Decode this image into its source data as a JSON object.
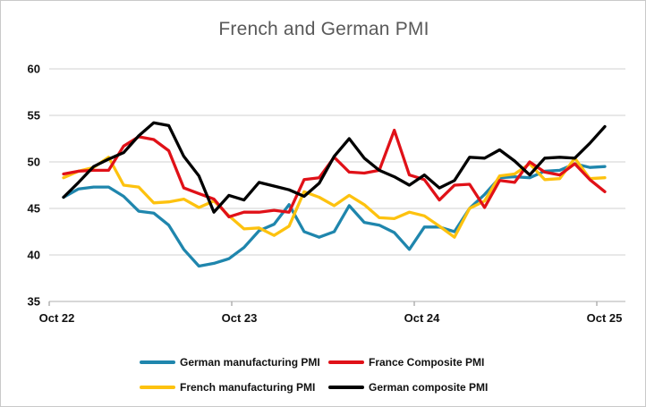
{
  "title": "French and German PMI",
  "colors": {
    "german_manufacturing": "#1f86ad",
    "french_manufacturing": "#fdc20f",
    "france_composite": "#e01118",
    "german_composite": "#000000",
    "gridline": "#d9d9d9",
    "axis_line": "#bfbfbf",
    "tick_mark": "#a6a6a6",
    "title_text": "#595959",
    "tick_text": "#111111",
    "background": "#ffffff",
    "border": "#c9c9c9"
  },
  "chart_data": {
    "type": "line",
    "title": "French and German PMI",
    "xlabel": "",
    "ylabel": "",
    "ylim": [
      35,
      60
    ],
    "y_ticks": [
      60,
      55,
      50,
      45,
      40,
      35
    ],
    "grid": "horizontal",
    "legend_position": "bottom",
    "x": [
      "Oct 22",
      "Nov 22",
      "Dec 22",
      "Jan 23",
      "Feb 23",
      "Mar 23",
      "Apr 23",
      "May 23",
      "Jun 23",
      "Jul 23",
      "Aug 23",
      "Sep 23",
      "Oct 23",
      "Nov 23",
      "Dec 23",
      "Jan 24",
      "Feb 24",
      "Mar 24",
      "Apr 24",
      "May 24",
      "Jun 24",
      "Jul 24",
      "Aug 24",
      "Sep 24",
      "Oct 24",
      "Nov 24",
      "Dec 24",
      "Jan 25",
      "Feb 25",
      "Mar 25",
      "Apr 25",
      "May 25",
      "Jun 25",
      "Jul 25",
      "Aug 25",
      "Sep 25",
      "Oct 25"
    ],
    "x_axis_tick_labels": [
      "Oct 22",
      "Oct 23",
      "Oct 24",
      "Oct 25"
    ],
    "series": [
      {
        "name": "German manufacturing PMI",
        "color": "#1f86ad",
        "values": [
          46.2,
          47.1,
          47.3,
          47.3,
          46.3,
          44.7,
          44.5,
          43.2,
          40.6,
          38.8,
          39.1,
          39.6,
          40.8,
          42.6,
          43.3,
          45.4,
          42.5,
          41.9,
          42.5,
          45.3,
          43.5,
          43.2,
          42.4,
          40.6,
          43.0,
          43.0,
          42.5,
          45.0,
          46.5,
          48.3,
          48.4,
          48.3,
          49.0,
          49.1,
          49.8,
          49.4,
          49.5
        ]
      },
      {
        "name": "French manufacturing PMI",
        "color": "#fdc20f",
        "values": [
          48.3,
          49.0,
          49.4,
          50.5,
          47.5,
          47.3,
          45.6,
          45.7,
          46.0,
          45.1,
          45.8,
          44.2,
          42.8,
          42.9,
          42.1,
          43.1,
          46.8,
          46.2,
          45.3,
          46.4,
          45.4,
          44.0,
          43.9,
          44.6,
          44.2,
          43.1,
          41.9,
          45.0,
          45.8,
          48.5,
          48.7,
          49.8,
          48.1,
          48.2,
          50.4,
          48.2,
          48.3
        ]
      },
      {
        "name": "France Composite PMI",
        "color": "#e01118",
        "values": [
          48.7,
          49.0,
          49.1,
          49.1,
          51.7,
          52.7,
          52.4,
          51.2,
          47.2,
          46.6,
          46.0,
          44.1,
          44.6,
          44.6,
          44.8,
          44.6,
          48.1,
          48.3,
          50.5,
          48.9,
          48.8,
          49.1,
          53.4,
          48.6,
          48.1,
          45.9,
          47.5,
          47.6,
          45.1,
          48.0,
          47.8,
          50.0,
          48.9,
          48.6,
          49.8,
          48.1,
          46.8
        ]
      },
      {
        "name": "German composite PMI",
        "color": "#000000",
        "values": [
          46.2,
          47.8,
          49.5,
          50.3,
          51.0,
          52.8,
          54.2,
          53.9,
          50.6,
          48.5,
          44.6,
          46.4,
          45.9,
          47.8,
          47.4,
          47.0,
          46.3,
          47.7,
          50.6,
          52.5,
          50.4,
          49.1,
          48.4,
          47.5,
          48.6,
          47.2,
          48.0,
          50.5,
          50.4,
          51.3,
          50.1,
          48.6,
          50.4,
          50.5,
          50.4,
          52.0,
          53.8
        ]
      }
    ],
    "legend_rows": [
      [
        0,
        2
      ],
      [
        1,
        3
      ]
    ]
  }
}
